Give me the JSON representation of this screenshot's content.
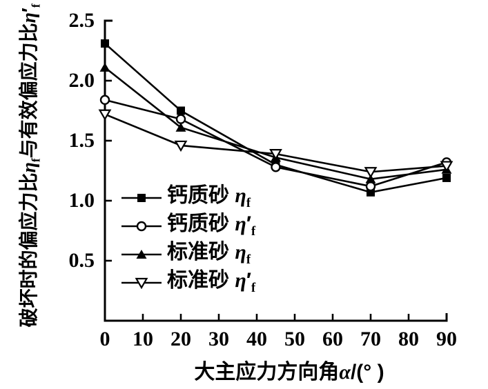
{
  "figure": {
    "background_color": "#ffffff",
    "line_color": "#000000"
  },
  "chart_data": {
    "type": "line",
    "title": "",
    "xlabel_html": "大主应力方向角<i>α</i>/(° )",
    "ylabel_html": "破坏时的偏应力比<i>η</i><sub>f</sub>与有效偏应力比<i>η</i>′<sub>f</sub>",
    "xlim": [
      0,
      90
    ],
    "ylim": [
      0,
      2.5
    ],
    "x_ticks": [
      0,
      10,
      20,
      30,
      40,
      50,
      60,
      70,
      80,
      90
    ],
    "x_tick_labels": [
      "0",
      "10",
      "20",
      "30",
      "40",
      "50",
      "60",
      "70",
      "80",
      "90"
    ],
    "y_ticks": [
      0.5,
      1.0,
      1.5,
      2.0,
      2.5
    ],
    "y_tick_labels": [
      "0.5",
      "1.0",
      "1.5",
      "2.0",
      "2.5"
    ],
    "grid": false,
    "legend_position": "inside-lower-left",
    "x": [
      0,
      20,
      45,
      70,
      90
    ],
    "series": [
      {
        "name_html": "钙质砂 <i>η</i><sub>f</sub>",
        "name_plain": "钙质砂 ηf",
        "marker": "square-filled",
        "color": "#000000",
        "values": [
          2.31,
          1.75,
          1.3,
          1.07,
          1.19
        ]
      },
      {
        "name_html": "钙质砂 <i>η</i>′<sub>f</sub>",
        "name_plain": "钙质砂 η′f",
        "marker": "circle-open",
        "color": "#000000",
        "values": [
          1.84,
          1.68,
          1.28,
          1.12,
          1.32
        ]
      },
      {
        "name_html": "标准砂 <i>η</i><sub>f</sub>",
        "name_plain": "标准砂 ηf",
        "marker": "triangle-filled",
        "color": "#000000",
        "values": [
          2.11,
          1.61,
          1.36,
          1.18,
          1.26
        ]
      },
      {
        "name_html": "标准砂 <i>η</i>′<sub>f</sub>",
        "name_plain": "标准砂 η′f",
        "marker": "triangle-down-open",
        "color": "#000000",
        "values": [
          1.72,
          1.46,
          1.39,
          1.24,
          1.29
        ]
      }
    ]
  }
}
